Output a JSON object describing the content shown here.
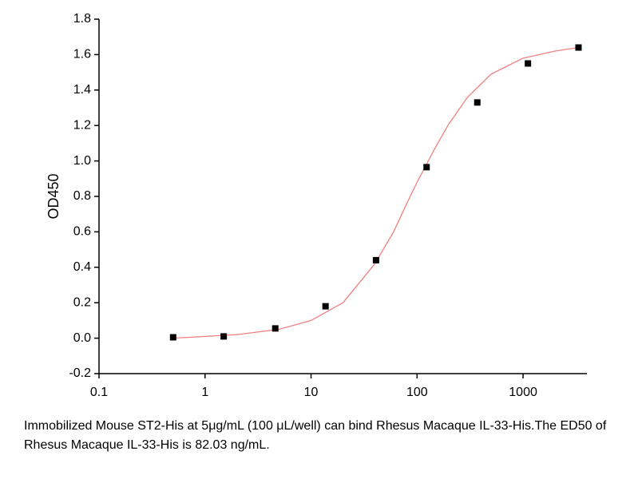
{
  "chart_data": {
    "type": "scatter",
    "y_label": "OD450",
    "caption": "Immobilized Mouse ST2-His at 5μg/mL (100 μL/well) can bind Rhesus Macaque IL-33-His.The ED50 of Rhesus Macaque IL-33-His is 82.03 ng/mL.",
    "x_log": true,
    "xlim": [
      0.1,
      4000
    ],
    "xticks": [
      0.1,
      1,
      10,
      100,
      1000
    ],
    "ylim": [
      -0.2,
      1.8
    ],
    "yticks": [
      -0.2,
      {
        "value": 0.0,
        "label": "0.0"
      },
      0.2,
      0.4,
      0.6,
      0.8,
      {
        "value": 1.0,
        "label": "1.0"
      },
      1.2,
      1.4,
      1.6,
      1.8
    ],
    "series": [
      {
        "color": "#000000",
        "x": [
          0.5,
          1.5,
          4.6,
          13.7,
          41,
          123,
          370,
          1111,
          3333
        ],
        "values": [
          0.005,
          0.01,
          0.055,
          0.18,
          0.44,
          0.965,
          1.33,
          1.55,
          1.64
        ]
      },
      {
        "type": "line",
        "color": "#f08080",
        "x": [
          0.5,
          1,
          2,
          5,
          10,
          20,
          40,
          60,
          80,
          100,
          150,
          200,
          300,
          500,
          1000,
          2000,
          3333
        ],
        "values": [
          0.0,
          0.01,
          0.02,
          0.05,
          0.1,
          0.2,
          0.42,
          0.6,
          0.76,
          0.88,
          1.08,
          1.21,
          1.36,
          1.49,
          1.58,
          1.62,
          1.64
        ]
      }
    ]
  }
}
